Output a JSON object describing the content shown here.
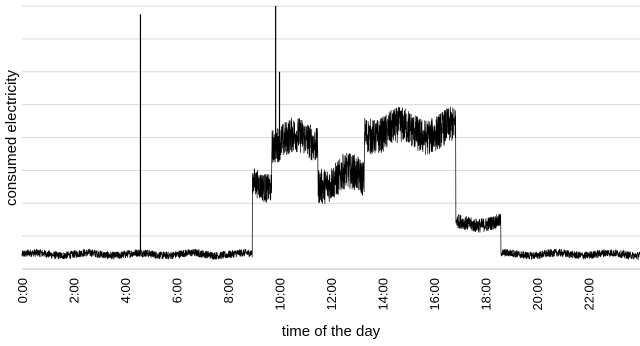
{
  "chart_data": {
    "type": "line",
    "title": "",
    "xlabel": "time of the day",
    "ylabel": "consumed electricity",
    "x_ticks": [
      "0:00",
      "2:00",
      "4:00",
      "6:00",
      "8:00",
      "10:00",
      "12:00",
      "14:00",
      "16:00",
      "18:00",
      "20:00",
      "22:00"
    ],
    "x_unit": "hours",
    "xlim": [
      0,
      24
    ],
    "ylim": [
      0,
      8
    ],
    "y_tick_labels_shown": false,
    "grid": "horizontal",
    "legend": "none",
    "series": [
      {
        "color": "#000000",
        "segments": [
          {
            "start": 0.0,
            "end": 8.95,
            "mean": 0.45,
            "noise": 0.12
          },
          {
            "start": 8.95,
            "end": 9.7,
            "mean": 2.6,
            "noise": 0.45
          },
          {
            "start": 9.7,
            "end": 11.5,
            "mean": 3.9,
            "noise": 0.55
          },
          {
            "start": 11.5,
            "end": 12.4,
            "mean": 2.7,
            "noise": 0.55
          },
          {
            "start": 12.4,
            "end": 13.3,
            "mean": 2.8,
            "noise": 0.55
          },
          {
            "start": 13.3,
            "end": 16.85,
            "mean": 4.2,
            "noise": 0.55
          },
          {
            "start": 16.85,
            "end": 18.6,
            "mean": 1.4,
            "noise": 0.22
          },
          {
            "start": 18.6,
            "end": 24.0,
            "mean": 0.45,
            "noise": 0.12
          }
        ],
        "spikes": [
          {
            "x": 4.6,
            "y": 7.75
          },
          {
            "x": 9.85,
            "y": 8.0
          },
          {
            "x": 10.0,
            "y": 6.0
          }
        ]
      }
    ]
  }
}
